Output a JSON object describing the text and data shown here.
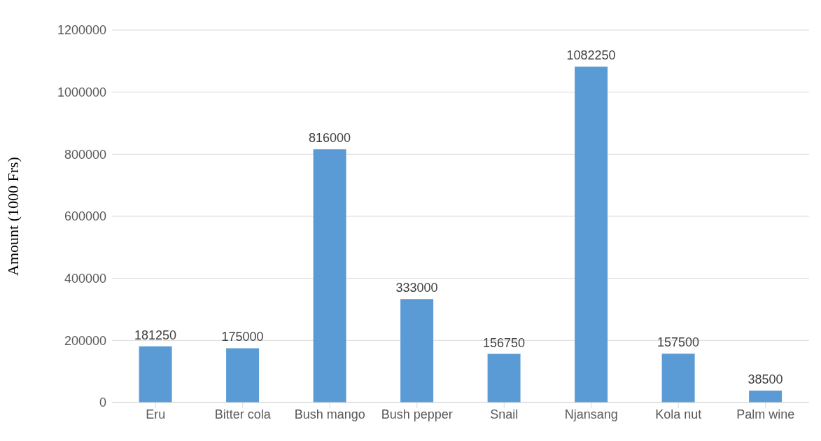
{
  "chart_data": {
    "type": "bar",
    "ylabel": "Amount (1000 Frs)",
    "categories": [
      "Eru",
      "Bitter cola",
      "Bush mango",
      "Bush pepper",
      "Snail",
      "Njansang",
      "Kola nut",
      "Palm wine"
    ],
    "values": [
      181250,
      175000,
      816000,
      333000,
      156750,
      1082250,
      157500,
      38500
    ],
    "color": "#5b9bd5",
    "ylim": [
      0,
      1200000
    ],
    "yticks": [
      0,
      200000,
      400000,
      600000,
      800000,
      1000000,
      1200000
    ],
    "grid": "y",
    "data_labels": true
  }
}
